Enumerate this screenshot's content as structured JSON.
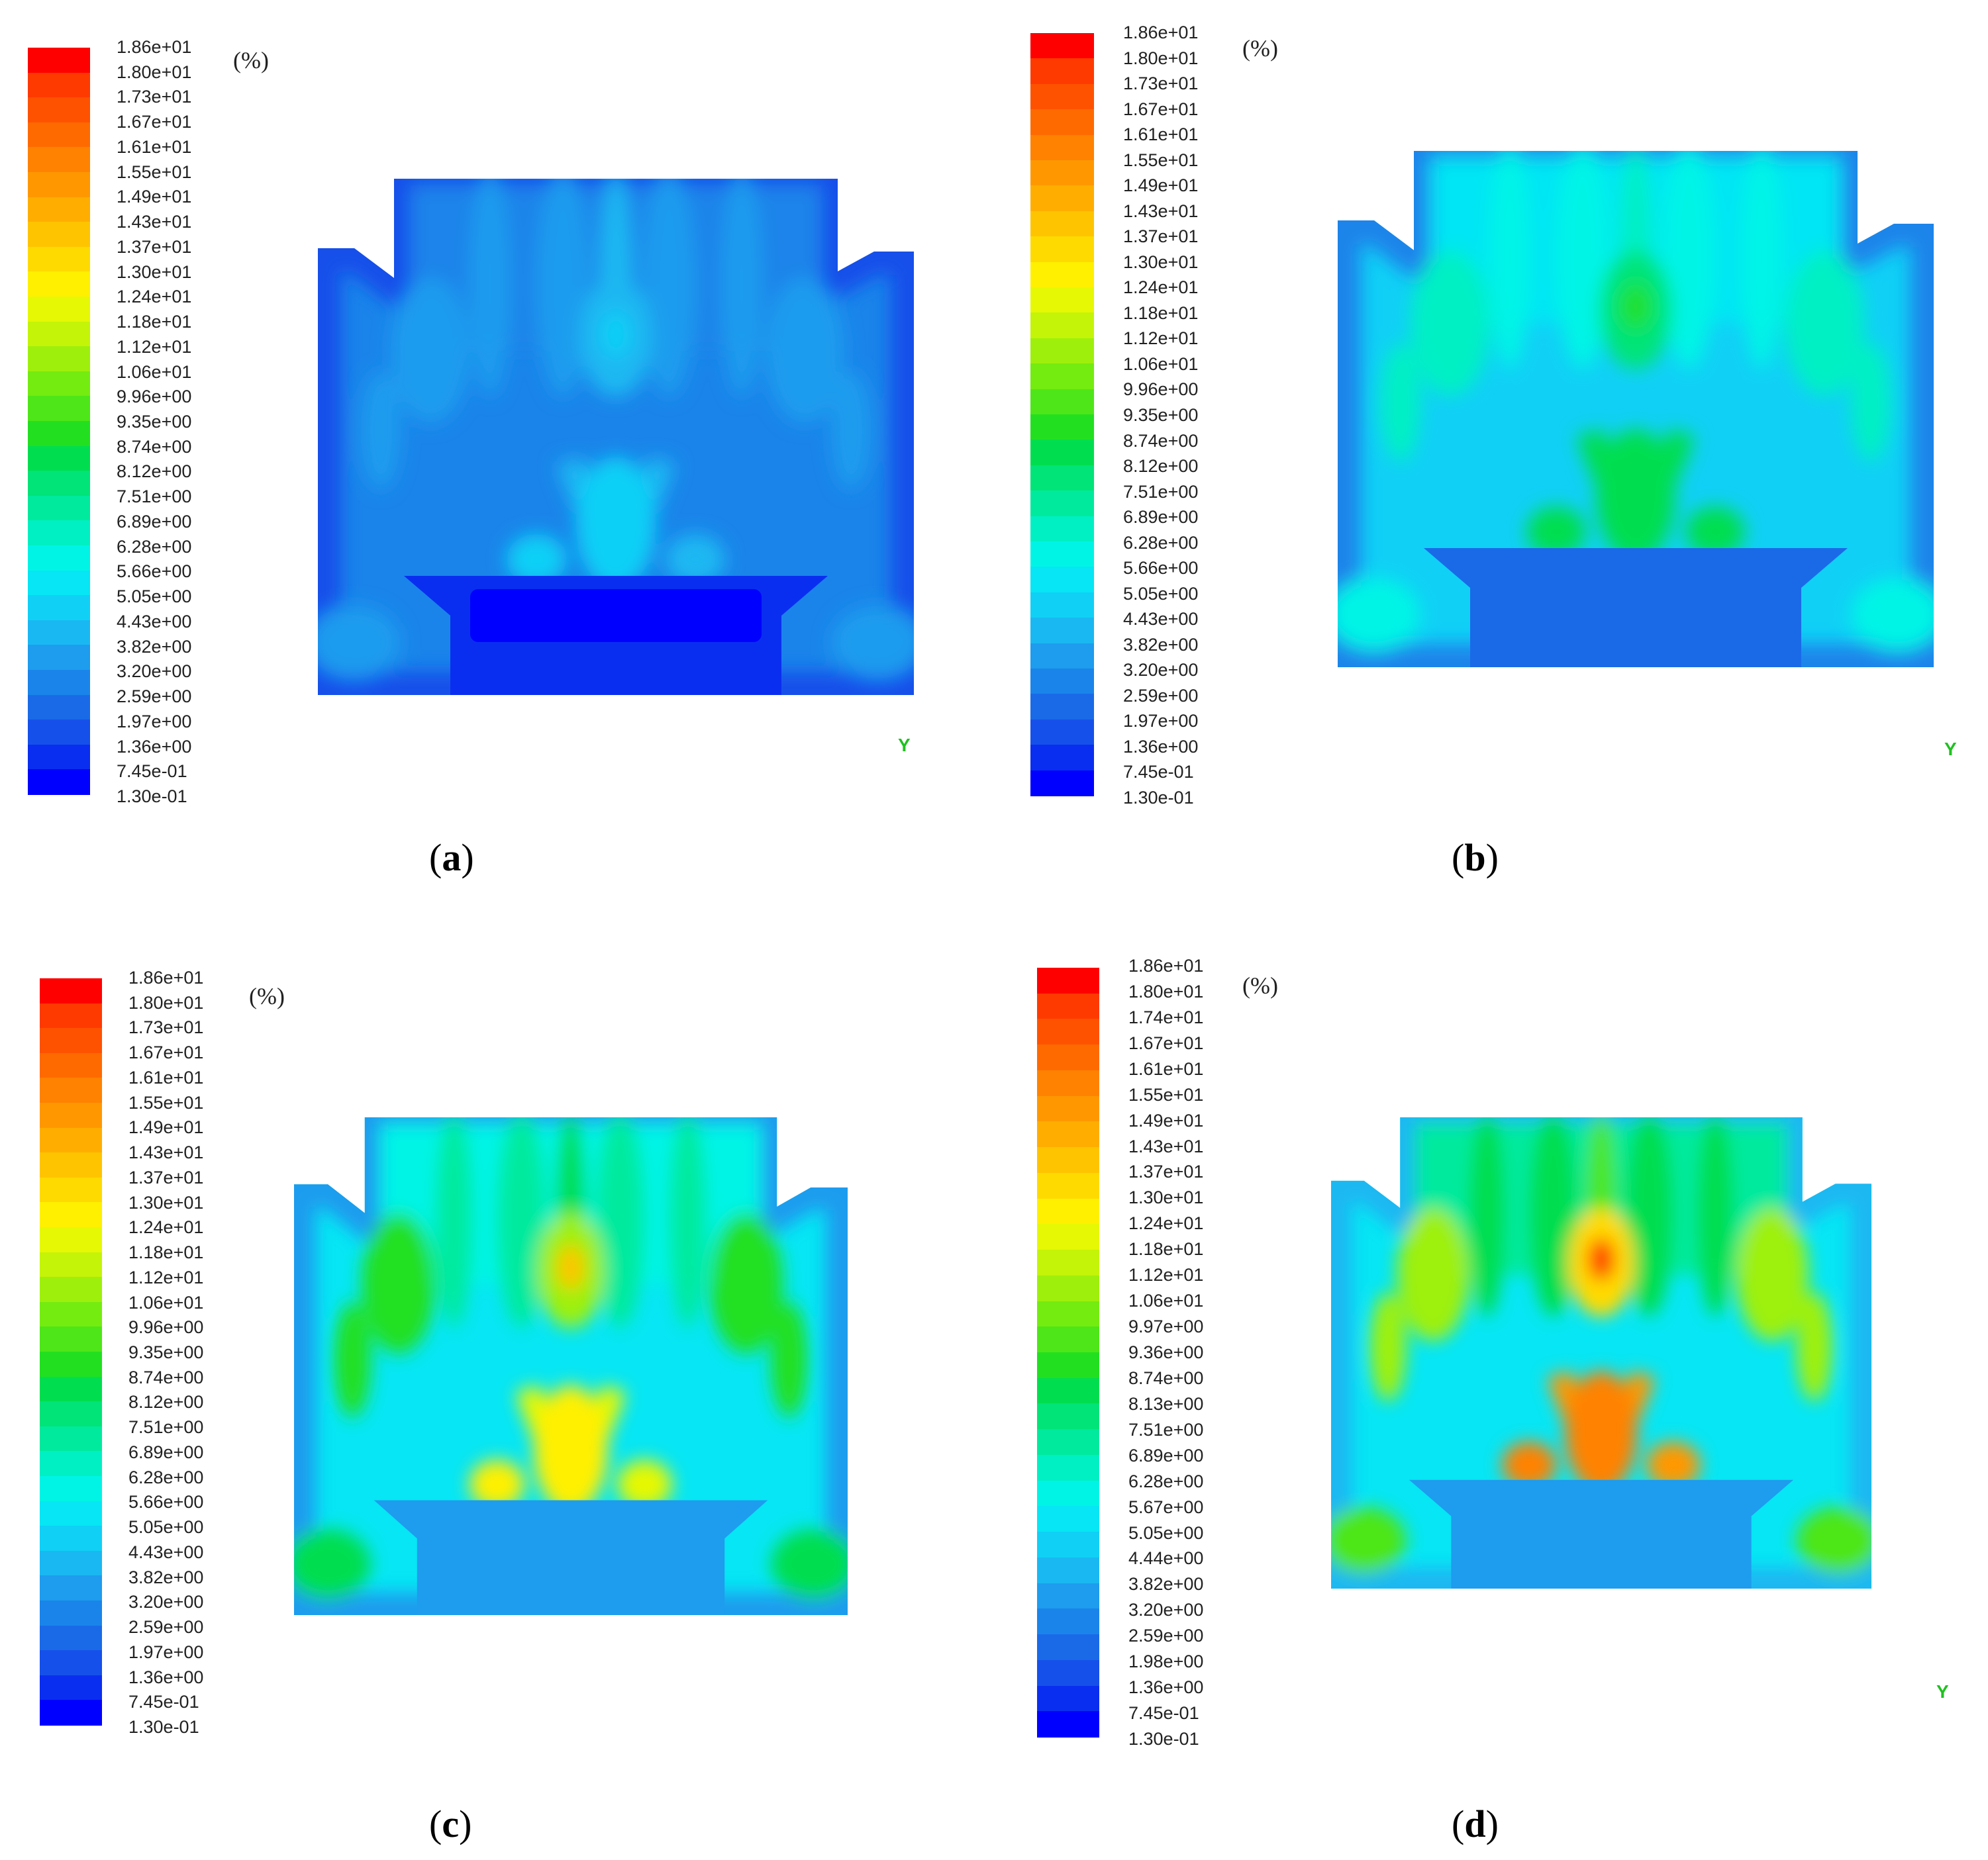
{
  "unit_label": "(%)",
  "axis_glyph": "Y",
  "colormap": [
    "#0000ff",
    "#0a2ef0",
    "#1650ea",
    "#1a6ae8",
    "#1a84ea",
    "#1e9cee",
    "#1ab8f2",
    "#10d0f6",
    "#06e6f4",
    "#00f4e6",
    "#00f0c4",
    "#00ea9e",
    "#00e478",
    "#00de50",
    "#22e020",
    "#4ee618",
    "#74ec10",
    "#9ef00c",
    "#c4f408",
    "#e6f804",
    "#fff000",
    "#ffda00",
    "#ffc400",
    "#ffae00",
    "#ff9800",
    "#ff8200",
    "#ff6a00",
    "#ff5200",
    "#ff3a00",
    "#ff0000"
  ],
  "chart_data": [
    {
      "type": "heatmap",
      "caption": "a",
      "unit": "(%)",
      "range": [
        0.13,
        18.6
      ],
      "colorbar_ticks": [
        "1.86e+01",
        "1.80e+01",
        "1.73e+01",
        "1.67e+01",
        "1.61e+01",
        "1.55e+01",
        "1.49e+01",
        "1.43e+01",
        "1.37e+01",
        "1.30e+01",
        "1.24e+01",
        "1.18e+01",
        "1.12e+01",
        "1.06e+01",
        "9.96e+00",
        "9.35e+00",
        "8.74e+00",
        "8.12e+00",
        "7.51e+00",
        "6.89e+00",
        "6.28e+00",
        "5.66e+00",
        "5.05e+00",
        "4.43e+00",
        "3.82e+00",
        "3.20e+00",
        "2.59e+00",
        "1.97e+00",
        "1.36e+00",
        "7.45e-01",
        "1.30e-01"
      ],
      "field_description_peak": 6.0
    },
    {
      "type": "heatmap",
      "caption": "b",
      "unit": "(%)",
      "range": [
        0.13,
        18.6
      ],
      "colorbar_ticks": [
        "1.86e+01",
        "1.80e+01",
        "1.73e+01",
        "1.67e+01",
        "1.61e+01",
        "1.55e+01",
        "1.49e+01",
        "1.43e+01",
        "1.37e+01",
        "1.30e+01",
        "1.24e+01",
        "1.18e+01",
        "1.12e+01",
        "1.06e+01",
        "9.96e+00",
        "9.35e+00",
        "8.74e+00",
        "8.12e+00",
        "7.51e+00",
        "6.89e+00",
        "6.28e+00",
        "5.66e+00",
        "5.05e+00",
        "4.43e+00",
        "3.82e+00",
        "3.20e+00",
        "2.59e+00",
        "1.97e+00",
        "1.36e+00",
        "7.45e-01",
        "1.30e-01"
      ],
      "field_description_peak": 9.0
    },
    {
      "type": "heatmap",
      "caption": "c",
      "unit": "(%)",
      "range": [
        0.13,
        18.6
      ],
      "colorbar_ticks": [
        "1.86e+01",
        "1.80e+01",
        "1.73e+01",
        "1.67e+01",
        "1.61e+01",
        "1.55e+01",
        "1.49e+01",
        "1.43e+01",
        "1.37e+01",
        "1.30e+01",
        "1.24e+01",
        "1.18e+01",
        "1.12e+01",
        "1.06e+01",
        "9.96e+00",
        "9.35e+00",
        "8.74e+00",
        "8.12e+00",
        "7.51e+00",
        "6.89e+00",
        "6.28e+00",
        "5.66e+00",
        "5.05e+00",
        "4.43e+00",
        "3.82e+00",
        "3.20e+00",
        "2.59e+00",
        "1.97e+00",
        "1.36e+00",
        "7.45e-01",
        "1.30e-01"
      ],
      "field_description_peak": 13.0
    },
    {
      "type": "heatmap",
      "caption": "d",
      "unit": "(%)",
      "range": [
        0.13,
        18.6
      ],
      "colorbar_ticks": [
        "1.86e+01",
        "1.80e+01",
        "1.74e+01",
        "1.67e+01",
        "1.61e+01",
        "1.55e+01",
        "1.49e+01",
        "1.43e+01",
        "1.37e+01",
        "1.30e+01",
        "1.24e+01",
        "1.18e+01",
        "1.12e+01",
        "1.06e+01",
        "9.97e+00",
        "9.36e+00",
        "8.74e+00",
        "8.13e+00",
        "7.51e+00",
        "6.89e+00",
        "6.28e+00",
        "5.67e+00",
        "5.05e+00",
        "4.44e+00",
        "3.82e+00",
        "3.20e+00",
        "2.59e+00",
        "1.98e+00",
        "1.36e+00",
        "7.45e-01",
        "1.30e-01"
      ],
      "field_description_peak": 16.0
    }
  ]
}
